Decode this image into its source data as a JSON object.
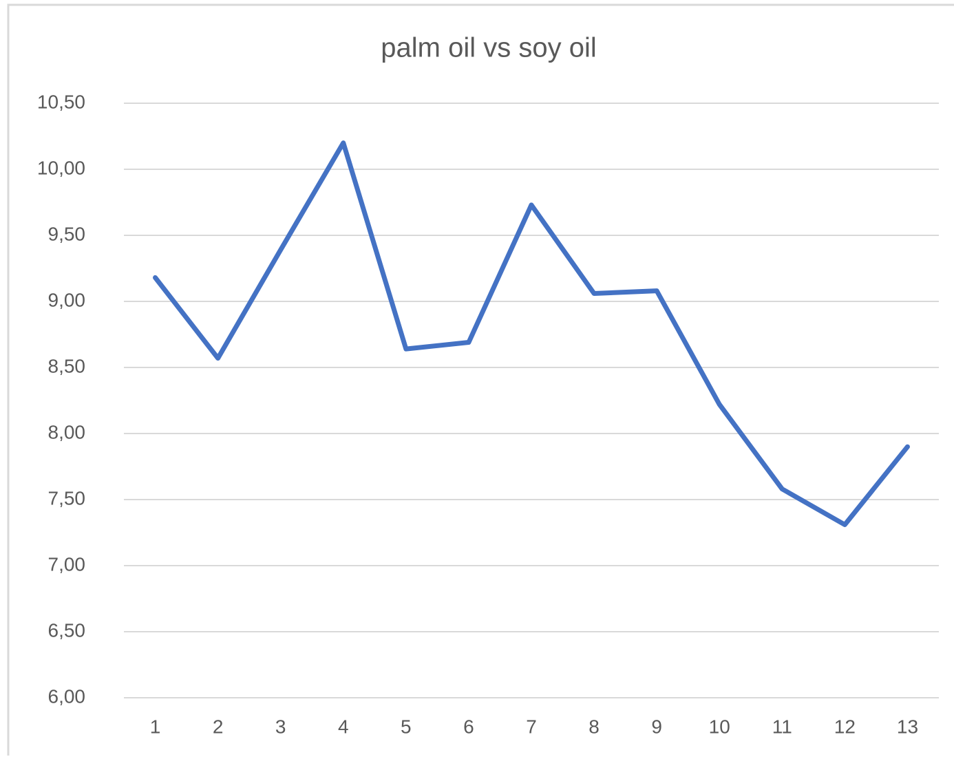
{
  "chart_data": {
    "type": "line",
    "title": "palm oil vs soy oil",
    "categories": [
      1,
      2,
      3,
      4,
      5,
      6,
      7,
      8,
      9,
      10,
      11,
      12,
      13
    ],
    "series": [
      {
        "name": "palm oil vs soy oil",
        "color": "#4472c4",
        "values": [
          9.18,
          8.57,
          9.39,
          10.2,
          8.64,
          8.69,
          9.73,
          9.06,
          9.08,
          8.22,
          7.58,
          7.31,
          7.9
        ]
      }
    ],
    "ylim": [
      6,
      10.5
    ],
    "yticks": [
      {
        "value": 6,
        "label": "6,00"
      },
      {
        "value": 6.5,
        "label": "6,50"
      },
      {
        "value": 7,
        "label": "7,00"
      },
      {
        "value": 7.5,
        "label": "7,50"
      },
      {
        "value": 8,
        "label": "8,00"
      },
      {
        "value": 8.5,
        "label": "8,50"
      },
      {
        "value": 9,
        "label": "9,00"
      },
      {
        "value": 9.5,
        "label": "9,50"
      },
      {
        "value": 10,
        "label": "10,00"
      },
      {
        "value": 10.5,
        "label": "10,50"
      }
    ],
    "grid": true
  }
}
